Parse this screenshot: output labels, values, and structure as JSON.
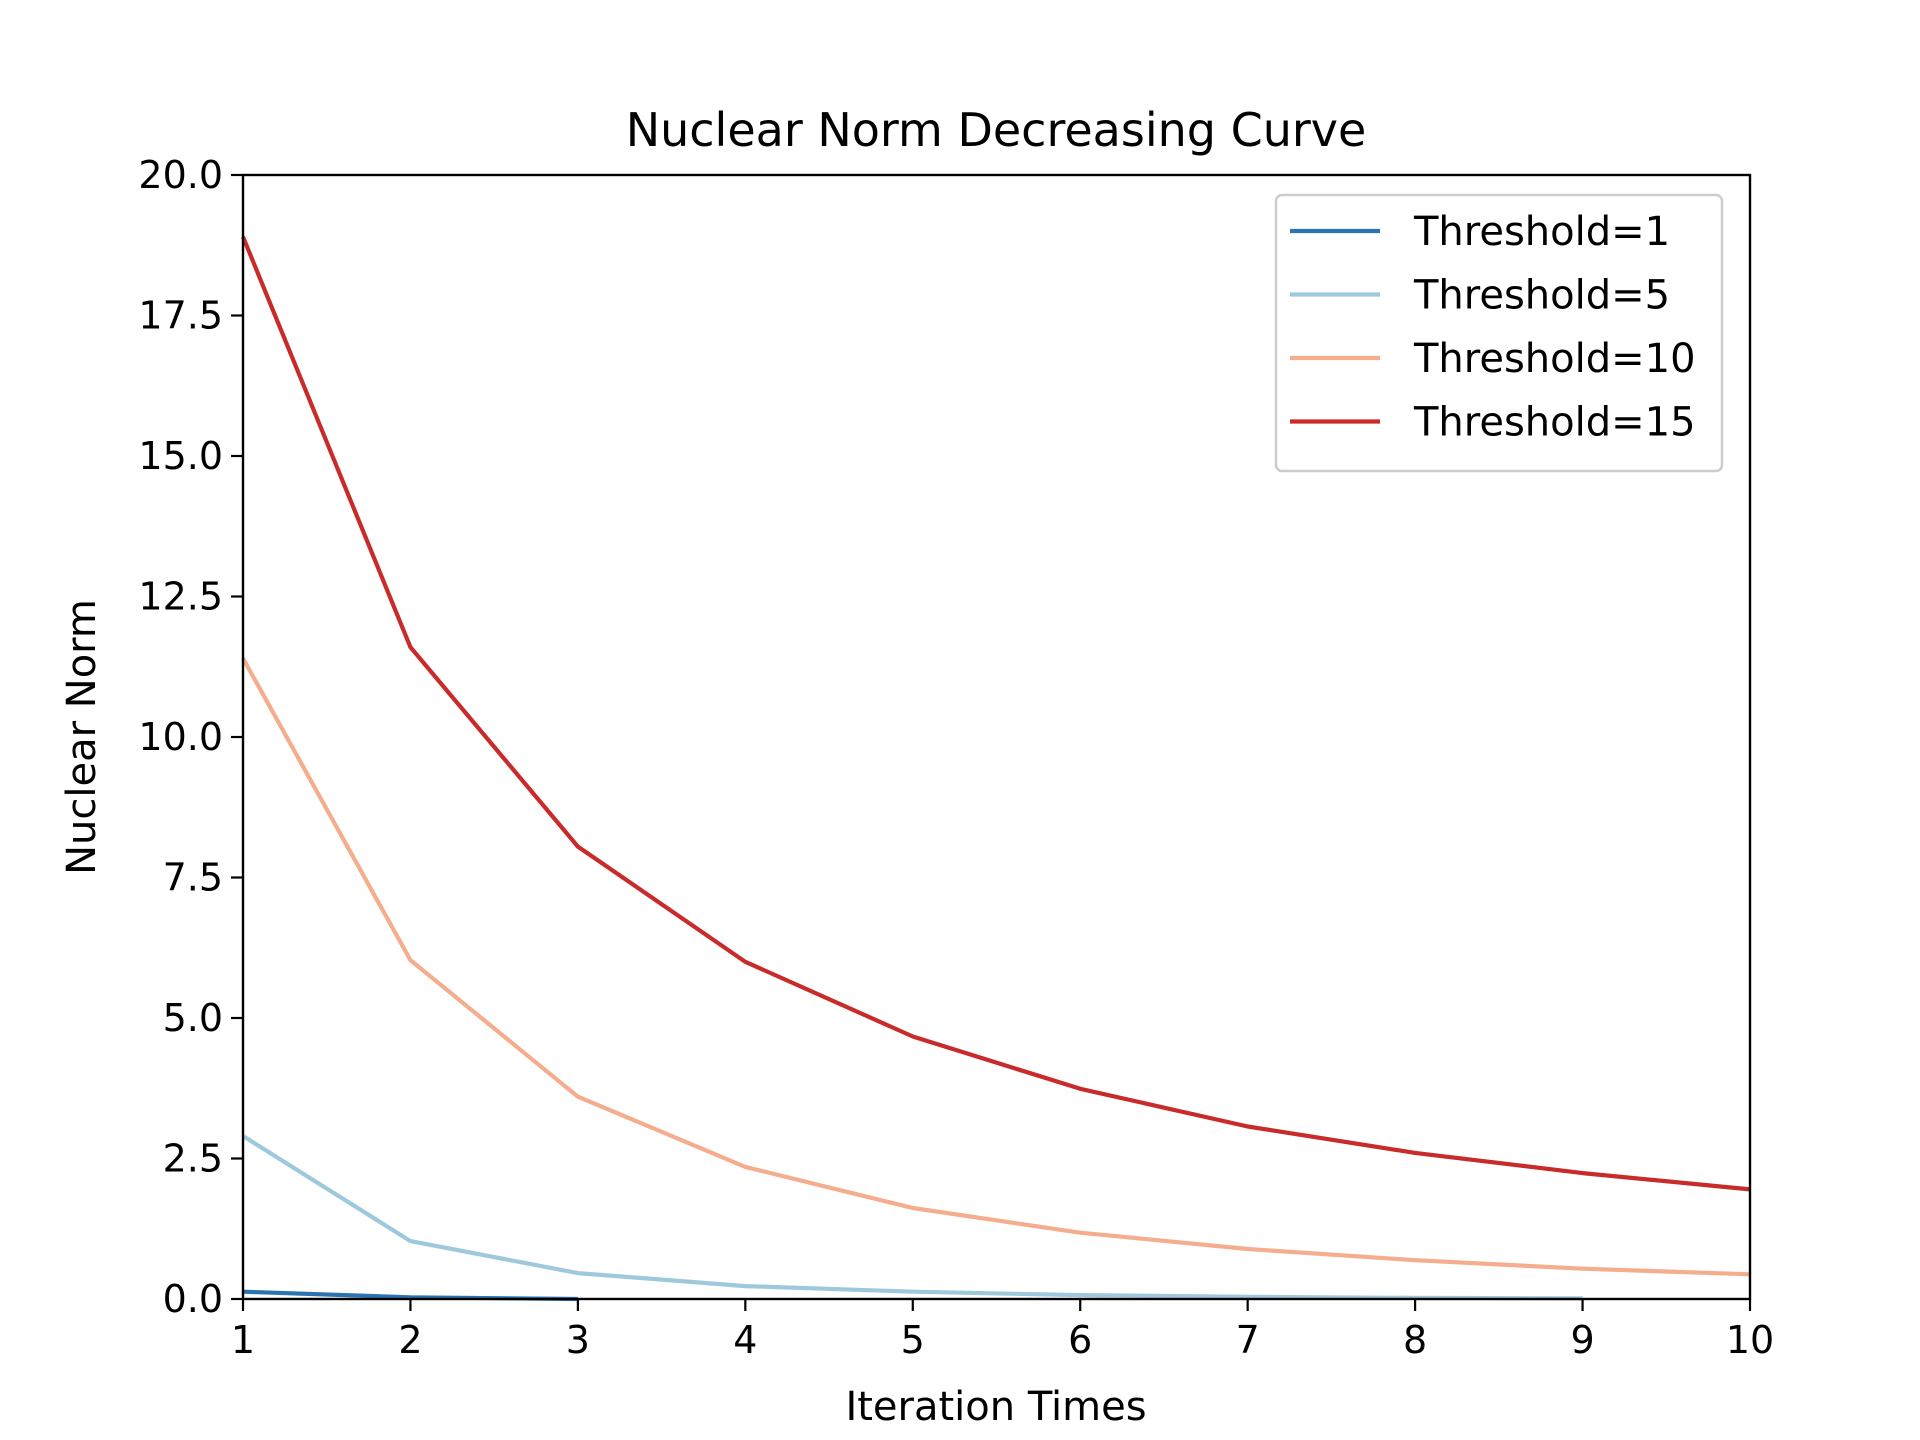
{
  "chart_data": {
    "type": "line",
    "title": "Nuclear Norm Decreasing Curve",
    "xlabel": "Iteration Times",
    "ylabel": "Nuclear Norm",
    "xlim": [
      1,
      10
    ],
    "ylim": [
      0,
      20
    ],
    "x_ticks": [
      1,
      2,
      3,
      4,
      5,
      6,
      7,
      8,
      9,
      10
    ],
    "x_tick_labels": [
      "1",
      "2",
      "3",
      "4",
      "5",
      "6",
      "7",
      "8",
      "9",
      "10"
    ],
    "y_ticks": [
      0,
      2.5,
      5,
      7.5,
      10,
      12.5,
      15,
      17.5,
      20
    ],
    "y_tick_labels": [
      "0.0",
      "2.5",
      "5.0",
      "7.5",
      "10.0",
      "12.5",
      "15.0",
      "17.5",
      "20.0"
    ],
    "grid": false,
    "legend_position": "top-right",
    "series": [
      {
        "name": "Threshold=1",
        "color": "#2c73b2",
        "x": [
          1,
          2,
          3
        ],
        "values": [
          0.13,
          0.03,
          0.0
        ]
      },
      {
        "name": "Threshold=5",
        "color": "#9ec9dd",
        "x": [
          1,
          2,
          3,
          4,
          5,
          6,
          7,
          8,
          9
        ],
        "values": [
          2.9,
          1.03,
          0.46,
          0.23,
          0.13,
          0.07,
          0.04,
          0.02,
          0.01
        ]
      },
      {
        "name": "Threshold=10",
        "color": "#f4ae8d",
        "x": [
          1,
          2,
          3,
          4,
          5,
          6,
          7,
          8,
          9,
          10
        ],
        "values": [
          11.4,
          6.03,
          3.6,
          2.35,
          1.62,
          1.18,
          0.89,
          0.69,
          0.54,
          0.44
        ]
      },
      {
        "name": "Threshold=15",
        "color": "#c92b2b",
        "x": [
          1,
          2,
          3,
          4,
          5,
          6,
          7,
          8,
          9,
          10
        ],
        "values": [
          18.9,
          11.6,
          8.05,
          6.0,
          4.67,
          3.74,
          3.07,
          2.6,
          2.24,
          1.95
        ]
      }
    ]
  }
}
